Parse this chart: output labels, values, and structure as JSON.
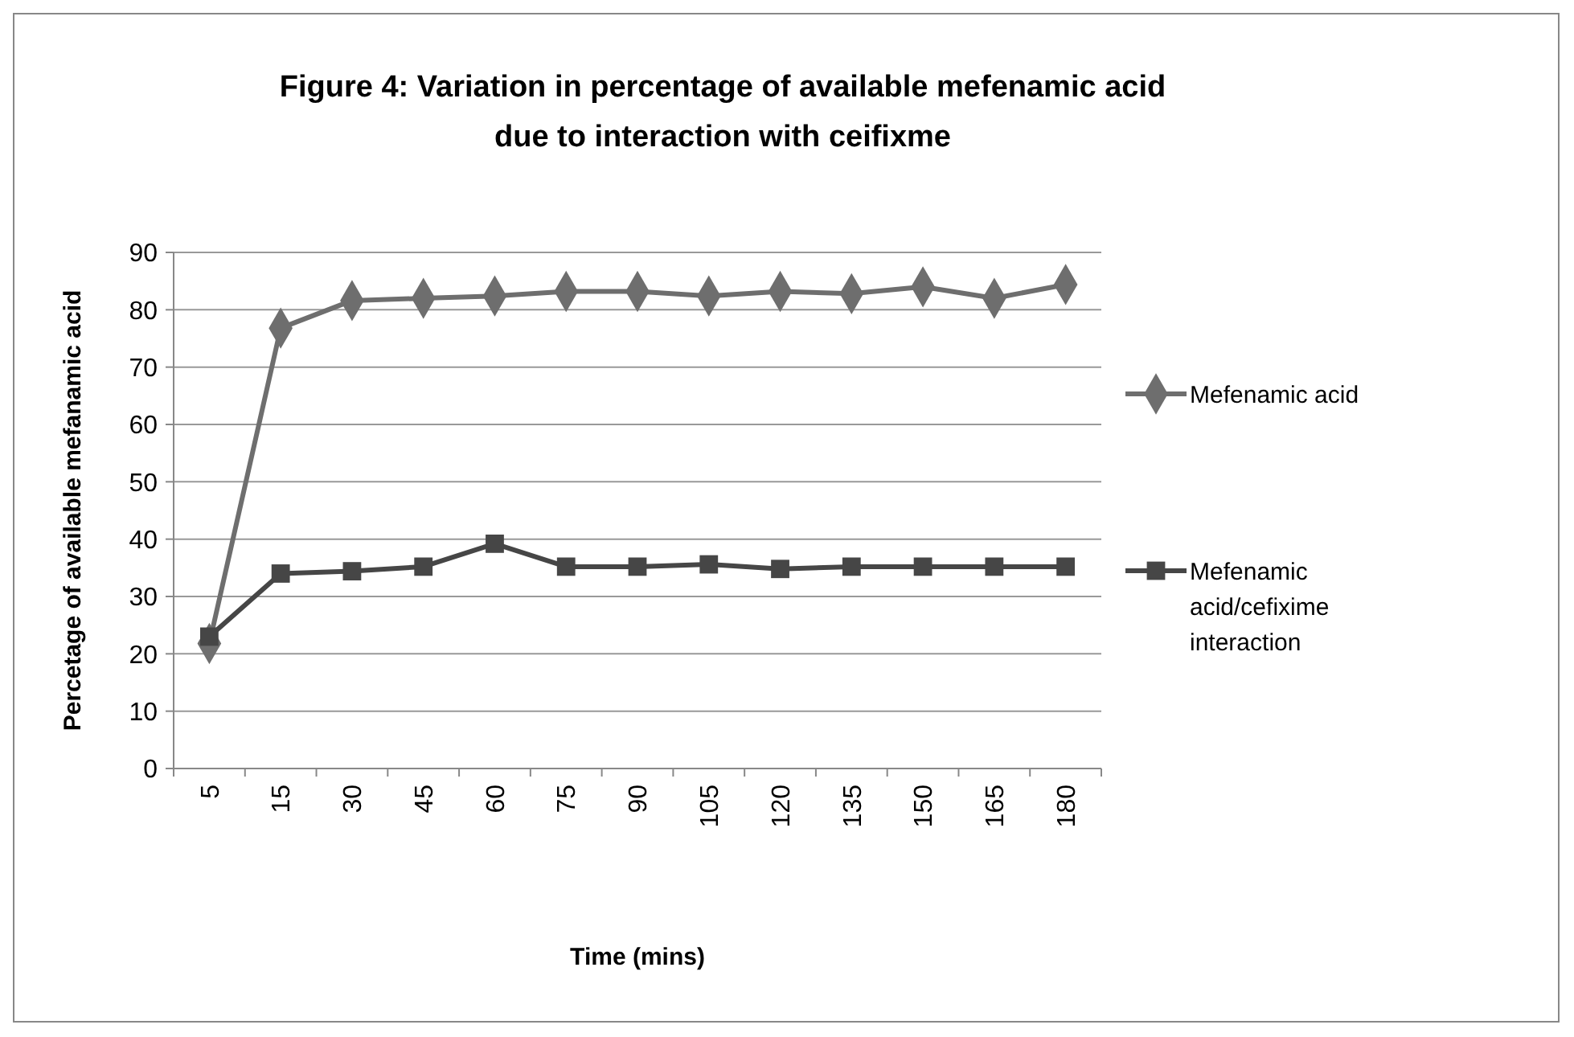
{
  "chart_data": {
    "type": "line",
    "title": "Figure 4: Variation in percentage of available mefenamic acid due to interaction with ceifixme",
    "xlabel": "Time (mins)",
    "ylabel": "Percetage of available mefanamic acid",
    "categories": [
      "5",
      "15",
      "30",
      "45",
      "60",
      "75",
      "90",
      "105",
      "120",
      "135",
      "150",
      "165",
      "180"
    ],
    "series": [
      {
        "name": "Mefenamic acid",
        "color": "#6e6e6e",
        "marker": "diamond",
        "values": [
          21.8,
          76.8,
          81.6,
          82,
          82.4,
          83.2,
          83.2,
          82.4,
          83.2,
          82.8,
          84,
          82,
          84.4
        ]
      },
      {
        "name": "Mefenamic acid/cefixime interaction",
        "color": "#464646",
        "marker": "square",
        "values": [
          23,
          34,
          34.4,
          35.2,
          39.2,
          35.2,
          35.2,
          35.6,
          34.8,
          35.2,
          35.2,
          35.2,
          35.2
        ]
      }
    ],
    "ylim": [
      0,
      90
    ],
    "yticks": [
      0,
      10,
      20,
      30,
      40,
      50,
      60,
      70,
      80,
      90
    ],
    "grid": "y",
    "legend": "right",
    "line_style": "solid"
  }
}
